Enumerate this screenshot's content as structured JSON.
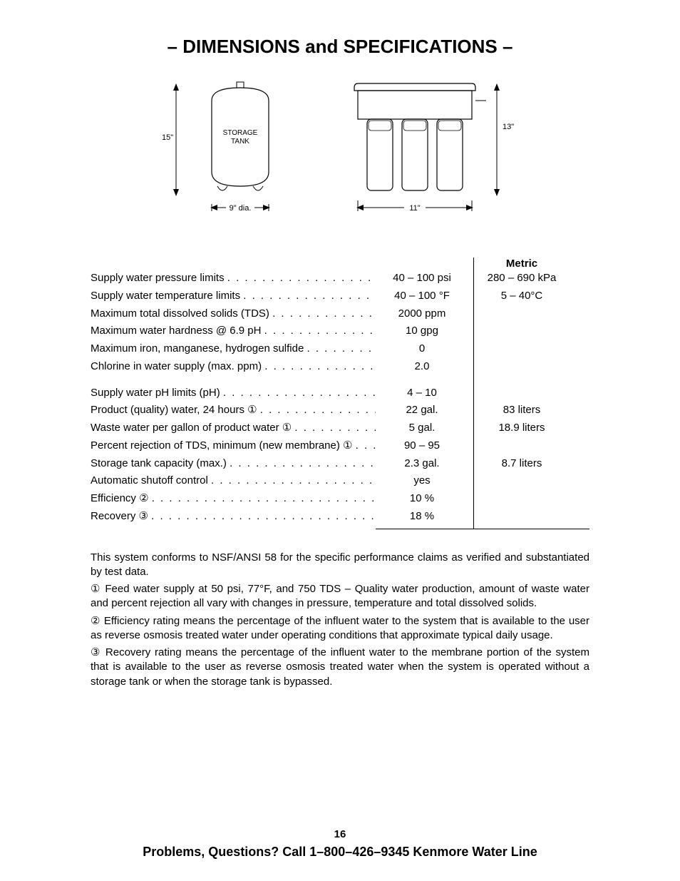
{
  "title": "– DIMENSIONS and SPECIFICATIONS –",
  "diagrams": {
    "tank": {
      "height_label": "15\"",
      "width_label": "9\" dia.",
      "body_label_1": "STORAGE",
      "body_label_2": "TANK"
    },
    "filter": {
      "height_label": "13\"",
      "width_label": "11\""
    },
    "stroke_color": "#000000",
    "label_fontsize": 11
  },
  "table": {
    "metric_header": "Metric",
    "rows_a": [
      {
        "label": "Supply water pressure limits",
        "val": "40 – 100 psi",
        "metric": "280 – 690 kPa"
      },
      {
        "label": "Supply water temperature limits",
        "val": "40 – 100 °F",
        "metric": "5 – 40°C"
      },
      {
        "label": "Maximum total dissolved solids (TDS)",
        "val": "2000 ppm",
        "metric": ""
      },
      {
        "label": "Maximum water hardness @ 6.9 pH",
        "val": "10 gpg",
        "metric": ""
      },
      {
        "label": "Maximum iron, manganese, hydrogen sulfide",
        "val": "0",
        "metric": ""
      },
      {
        "label": "Chlorine in water supply (max. ppm)",
        "val": "2.0",
        "metric": ""
      }
    ],
    "rows_b": [
      {
        "label": "Supply water pH limits (pH)",
        "val": "4 – 10",
        "metric": ""
      },
      {
        "label": "Product (quality) water, 24 hours  ①",
        "val": "22 gal.",
        "metric": "83 liters"
      },
      {
        "label": "Waste water per gallon of product water ①",
        "val": "5 gal.",
        "metric": "18.9 liters"
      },
      {
        "label": "Percent rejection of TDS, minimum (new membrane)  ①",
        "val": "90 – 95",
        "metric": ""
      },
      {
        "label": "Storage tank capacity (max.)",
        "val": "2.3 gal.",
        "metric": "8.7 liters"
      },
      {
        "label": "Automatic shutoff control",
        "val": "yes",
        "metric": ""
      },
      {
        "label": "Efficiency ②",
        "val": "10 %",
        "metric": ""
      },
      {
        "label": "Recovery ③",
        "val": "18 %",
        "metric": ""
      }
    ]
  },
  "notes": {
    "p1": "This system conforms to NSF/ANSI 58 for the specific performance claims as verified and substantiated by test data.",
    "p2": "① Feed water supply at 50 psi, 77°F, and 750 TDS – Quality water production, amount of waste water and percent rejection all vary with changes in pressure, temperature and total dissolved solids.",
    "p3": "② Efficiency rating means the percentage of the influent water to the system that is available to the user as reverse osmosis treated water under operating conditions that approximate typical daily usage.",
    "p4": "③ Recovery rating means the percentage of the influent water to the membrane portion of the system that is available to the user as reverse osmosis treated water when the system is operated without a storage tank or when the storage tank is bypassed."
  },
  "footer": {
    "page_num": "16",
    "line": "Problems, Questions? Call 1–800–426–9345 Kenmore Water Line"
  }
}
